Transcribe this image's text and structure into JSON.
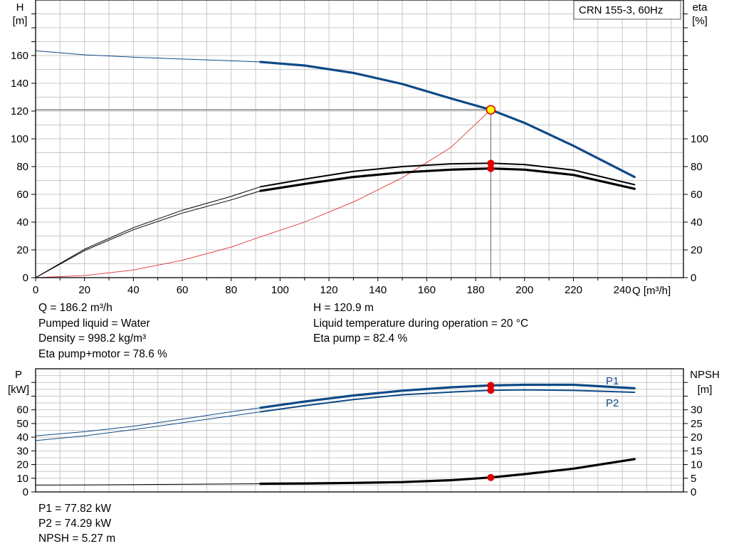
{
  "model_label": "CRN 155-3, 60Hz",
  "info": {
    "q": "Q = 186.2 m³/h",
    "liquid": "Pumped liquid = Water",
    "density": "Density = 998.2 kg/m³",
    "eta_pm": "Eta pump+motor = 78.6 %",
    "h": "H = 120.9 m",
    "temp": "Liquid temperature during operation = 20 °C",
    "eta_p": "Eta pump = 82.4 %",
    "p1": "P1 = 77.82 kW",
    "p2": "P2 = 74.29 kW",
    "npsh": "NPSH = 5.27 m"
  },
  "colors": {
    "head": "#0e4a86",
    "system": "#e03030",
    "efficiency": "#000000",
    "grid": "#c8c8c8",
    "marker": "#e00000",
    "duty_point_fill": "#ffff00"
  },
  "chart_data": [
    {
      "type": "line",
      "title": "",
      "xlabel": "Q [m³/h]",
      "xlim": [
        0,
        265
      ],
      "xticks": [
        0,
        20,
        40,
        60,
        80,
        100,
        120,
        140,
        160,
        180,
        200,
        220,
        240
      ],
      "y_left": {
        "label_line1": "H",
        "label_line2": "[m]",
        "lim": [
          0,
          200
        ],
        "ticks": [
          0,
          20,
          40,
          60,
          80,
          100,
          120,
          140,
          160
        ]
      },
      "y_right": {
        "label_line1": "eta",
        "label_line2": "[%]",
        "lim": [
          0,
          200
        ],
        "ticks": [
          0,
          20,
          40,
          60,
          80,
          100
        ]
      },
      "duty_point": {
        "q": 186.2,
        "h": 120.9,
        "eta_pump": 82.4,
        "eta_pump_motor": 78.6
      },
      "series": [
        {
          "key": "head_thin",
          "x": [
            0,
            20,
            40,
            60,
            80,
            92
          ],
          "values": [
            163.5,
            160.5,
            158.8,
            157.5,
            156.2,
            155.4
          ]
        },
        {
          "key": "head",
          "x": [
            92,
            110,
            130,
            150,
            170,
            186.2,
            200,
            220,
            245
          ],
          "values": [
            155.4,
            152.8,
            147.5,
            139.5,
            129,
            120.9,
            111.5,
            95,
            72.5
          ]
        },
        {
          "key": "system",
          "x": [
            0,
            20,
            40,
            60,
            80,
            93,
            110,
            130,
            150,
            170,
            186.2
          ],
          "values": [
            0,
            1.5,
            5.5,
            12.5,
            22,
            30,
            40,
            54.5,
            72,
            94,
            120.9
          ]
        },
        {
          "key": "eta_pump_thin",
          "x": [
            0,
            20,
            40,
            60,
            80,
            92
          ],
          "values": [
            0,
            20.5,
            36,
            48.5,
            58.5,
            65.5
          ]
        },
        {
          "key": "eta_pump",
          "x": [
            92,
            110,
            130,
            150,
            170,
            186.2,
            200,
            220,
            245
          ],
          "values": [
            65.5,
            71,
            76.5,
            80,
            82,
            82.4,
            81.5,
            77.5,
            67
          ]
        },
        {
          "key": "eta_pm_thin",
          "x": [
            0,
            20,
            40,
            60,
            80,
            92
          ],
          "values": [
            0,
            19.5,
            34.5,
            46.5,
            56,
            62.5
          ]
        },
        {
          "key": "eta_pm",
          "x": [
            92,
            110,
            130,
            150,
            170,
            186.2,
            200,
            220,
            245
          ],
          "values": [
            62.5,
            67.5,
            72.5,
            75.8,
            77.8,
            78.6,
            77.8,
            74,
            64
          ]
        }
      ]
    },
    {
      "type": "line",
      "title": "",
      "xlabel": "",
      "xlim": [
        0,
        265
      ],
      "y_left": {
        "label_line1": "P",
        "label_line2": "[kW]",
        "lim": [
          0,
          90
        ],
        "ticks": [
          0,
          10,
          20,
          30,
          40,
          50,
          60
        ]
      },
      "y_right": {
        "label_line1": "NPSH",
        "label_line2": "[m]",
        "lim": [
          0,
          45
        ],
        "ticks": [
          0,
          5,
          10,
          15,
          20,
          25,
          30
        ]
      },
      "series_labels": {
        "p1": "P1",
        "p2": "P2"
      },
      "series": [
        {
          "key": "p1_thin",
          "name": "P1",
          "x": [
            0,
            20,
            40,
            60,
            80,
            92
          ],
          "values": [
            41,
            44,
            48,
            53.2,
            58.5,
            61.5
          ]
        },
        {
          "key": "p1",
          "name": "P1",
          "x": [
            92,
            110,
            130,
            150,
            170,
            186.2,
            200,
            220,
            245
          ],
          "values": [
            61.5,
            66,
            70.5,
            74,
            76.5,
            77.82,
            78.3,
            78.3,
            75.8
          ]
        },
        {
          "key": "p2_thin",
          "name": "P2",
          "x": [
            0,
            20,
            40,
            60,
            80,
            92
          ],
          "values": [
            37.5,
            41,
            45.5,
            50.5,
            55.5,
            58.5
          ]
        },
        {
          "key": "p2",
          "name": "P2",
          "x": [
            92,
            110,
            130,
            150,
            170,
            186.2,
            200,
            220,
            245
          ],
          "values": [
            58.5,
            63,
            67.5,
            71,
            73,
            74.29,
            74.6,
            74.2,
            72.8
          ]
        },
        {
          "key": "npsh_thin",
          "x": [
            0,
            30,
            60,
            92
          ],
          "values": [
            2.5,
            2.6,
            2.8,
            3
          ]
        },
        {
          "key": "npsh",
          "x": [
            92,
            110,
            130,
            150,
            170,
            186.2,
            200,
            220,
            245
          ],
          "values": [
            3,
            3.1,
            3.3,
            3.6,
            4.3,
            5.27,
            6.5,
            8.5,
            12
          ]
        }
      ]
    }
  ]
}
